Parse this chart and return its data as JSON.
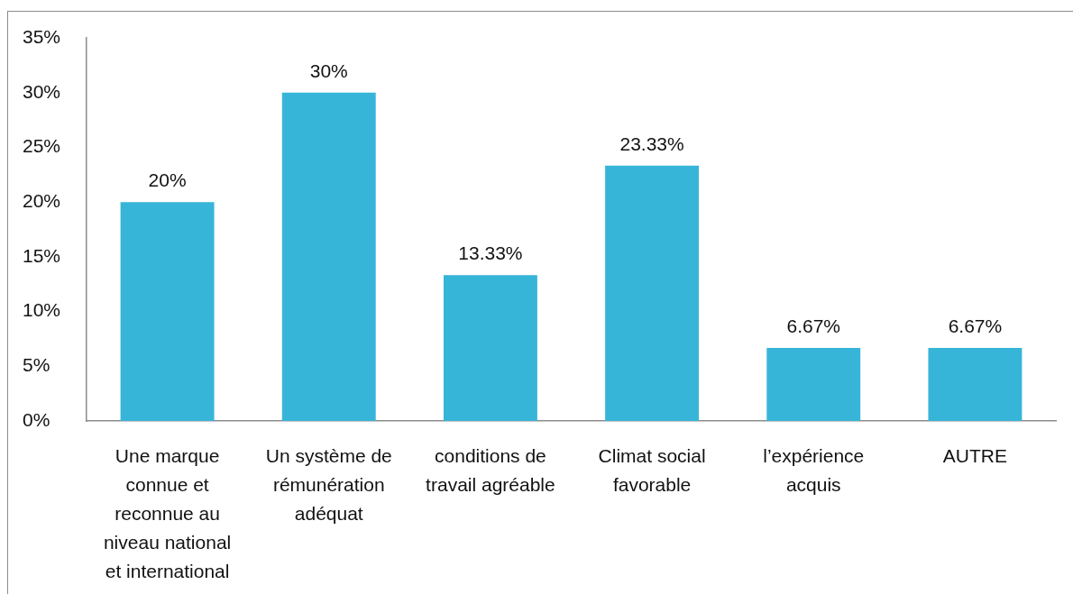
{
  "chart_data": {
    "type": "bar",
    "categories": [
      "Une marque connue et reconnue au niveau national et international",
      "Un système de rémunération adéquat",
      "conditions de travail agréable",
      "Climat social favorable",
      "l’expérience acquis",
      "AUTRE"
    ],
    "values": [
      20,
      30,
      13.33,
      23.33,
      6.67,
      6.67
    ],
    "value_labels": [
      "20%",
      "30%",
      "13.33%",
      "23.33%",
      "6.67%",
      "6.67%"
    ],
    "color": "#37b5d9",
    "ylim": [
      0,
      35
    ],
    "yticks": [
      {
        "value": 0,
        "label": "0%"
      },
      {
        "value": 5,
        "label": "5%"
      },
      {
        "value": 10,
        "label": "10%"
      },
      {
        "value": 15,
        "label": "15%"
      },
      {
        "value": 20,
        "label": "20%"
      },
      {
        "value": 25,
        "label": "25%"
      },
      {
        "value": 30,
        "label": "30%"
      },
      {
        "value": 35,
        "label": "35%"
      }
    ]
  }
}
